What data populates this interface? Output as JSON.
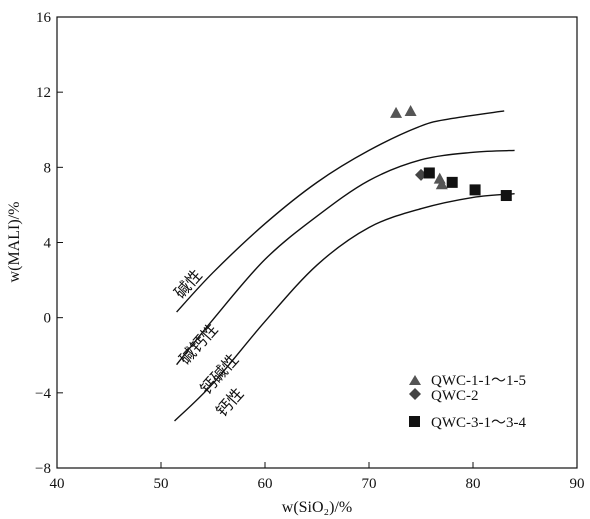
{
  "chart_data": {
    "type": "scatter",
    "xlabel": "w(SiO₂)/%",
    "ylabel": "w(MALI)/%",
    "xlim": [
      40,
      90
    ],
    "ylim": [
      -8,
      16
    ],
    "xticks": [
      "40",
      "50",
      "60",
      "70",
      "80",
      "90"
    ],
    "yticks": [
      "16",
      "12",
      "8",
      "4",
      "0",
      "−4",
      "−8"
    ],
    "xtick_values": [
      40,
      50,
      60,
      70,
      80,
      90
    ],
    "ytick_values": [
      16,
      12,
      8,
      4,
      0,
      -4,
      -8
    ],
    "grid": false,
    "legend_position": "bottom-right",
    "series": [
      {
        "name": "QWC-1-1～1-5",
        "marker": "triangle",
        "color": "#555555",
        "points": [
          [
            72.6,
            10.9
          ],
          [
            74.0,
            11.0
          ],
          [
            76.8,
            7.4
          ],
          [
            77.0,
            7.1
          ]
        ]
      },
      {
        "name": "QWC-2",
        "marker": "diamond",
        "color": "#444444",
        "points": [
          [
            75.0,
            7.6
          ]
        ]
      },
      {
        "name": "QWC-3-1～3-4",
        "marker": "square",
        "color": "#111111",
        "points": [
          [
            75.8,
            7.7
          ],
          [
            78.0,
            7.2
          ],
          [
            80.2,
            6.8
          ],
          [
            83.2,
            6.5
          ]
        ]
      }
    ],
    "boundary_lines": [
      {
        "name": "alkalic / alkali-calcic",
        "points": [
          [
            51.5,
            0.3
          ],
          [
            55,
            2.4
          ],
          [
            60,
            5.0
          ],
          [
            65,
            7.2
          ],
          [
            70,
            8.9
          ],
          [
            75,
            10.2
          ],
          [
            78,
            10.6
          ],
          [
            83,
            11.0
          ]
        ]
      },
      {
        "name": "alkali-calcic / calc-alkalic",
        "points": [
          [
            51.5,
            -2.5
          ],
          [
            55,
            -0.1
          ],
          [
            60,
            3.1
          ],
          [
            65,
            5.4
          ],
          [
            70,
            7.3
          ],
          [
            75,
            8.4
          ],
          [
            80,
            8.8
          ],
          [
            84,
            8.9
          ]
        ]
      },
      {
        "name": "calc-alkalic / calcic",
        "points": [
          [
            51.3,
            -5.5
          ],
          [
            55,
            -3.5
          ],
          [
            60,
            -0.2
          ],
          [
            65,
            2.8
          ],
          [
            70,
            4.8
          ],
          [
            75,
            5.8
          ],
          [
            80,
            6.4
          ],
          [
            84,
            6.6
          ]
        ]
      }
    ],
    "field_labels": [
      {
        "text": "碱性",
        "x": 53.0,
        "y": 1.6
      },
      {
        "text": "碱钙性",
        "x": 54.0,
        "y": -1.6
      },
      {
        "text": "钙碱性",
        "x": 56.0,
        "y": -3.2
      },
      {
        "text": "钙性",
        "x": 57.0,
        "y": -4.7
      }
    ]
  },
  "legend": {
    "items": [
      {
        "label": "QWC-1-1～1-5",
        "marker": "triangle"
      },
      {
        "label": "QWC-2",
        "marker": "diamond"
      },
      {
        "label": "QWC-3-1～3-4",
        "marker": "square"
      }
    ]
  }
}
